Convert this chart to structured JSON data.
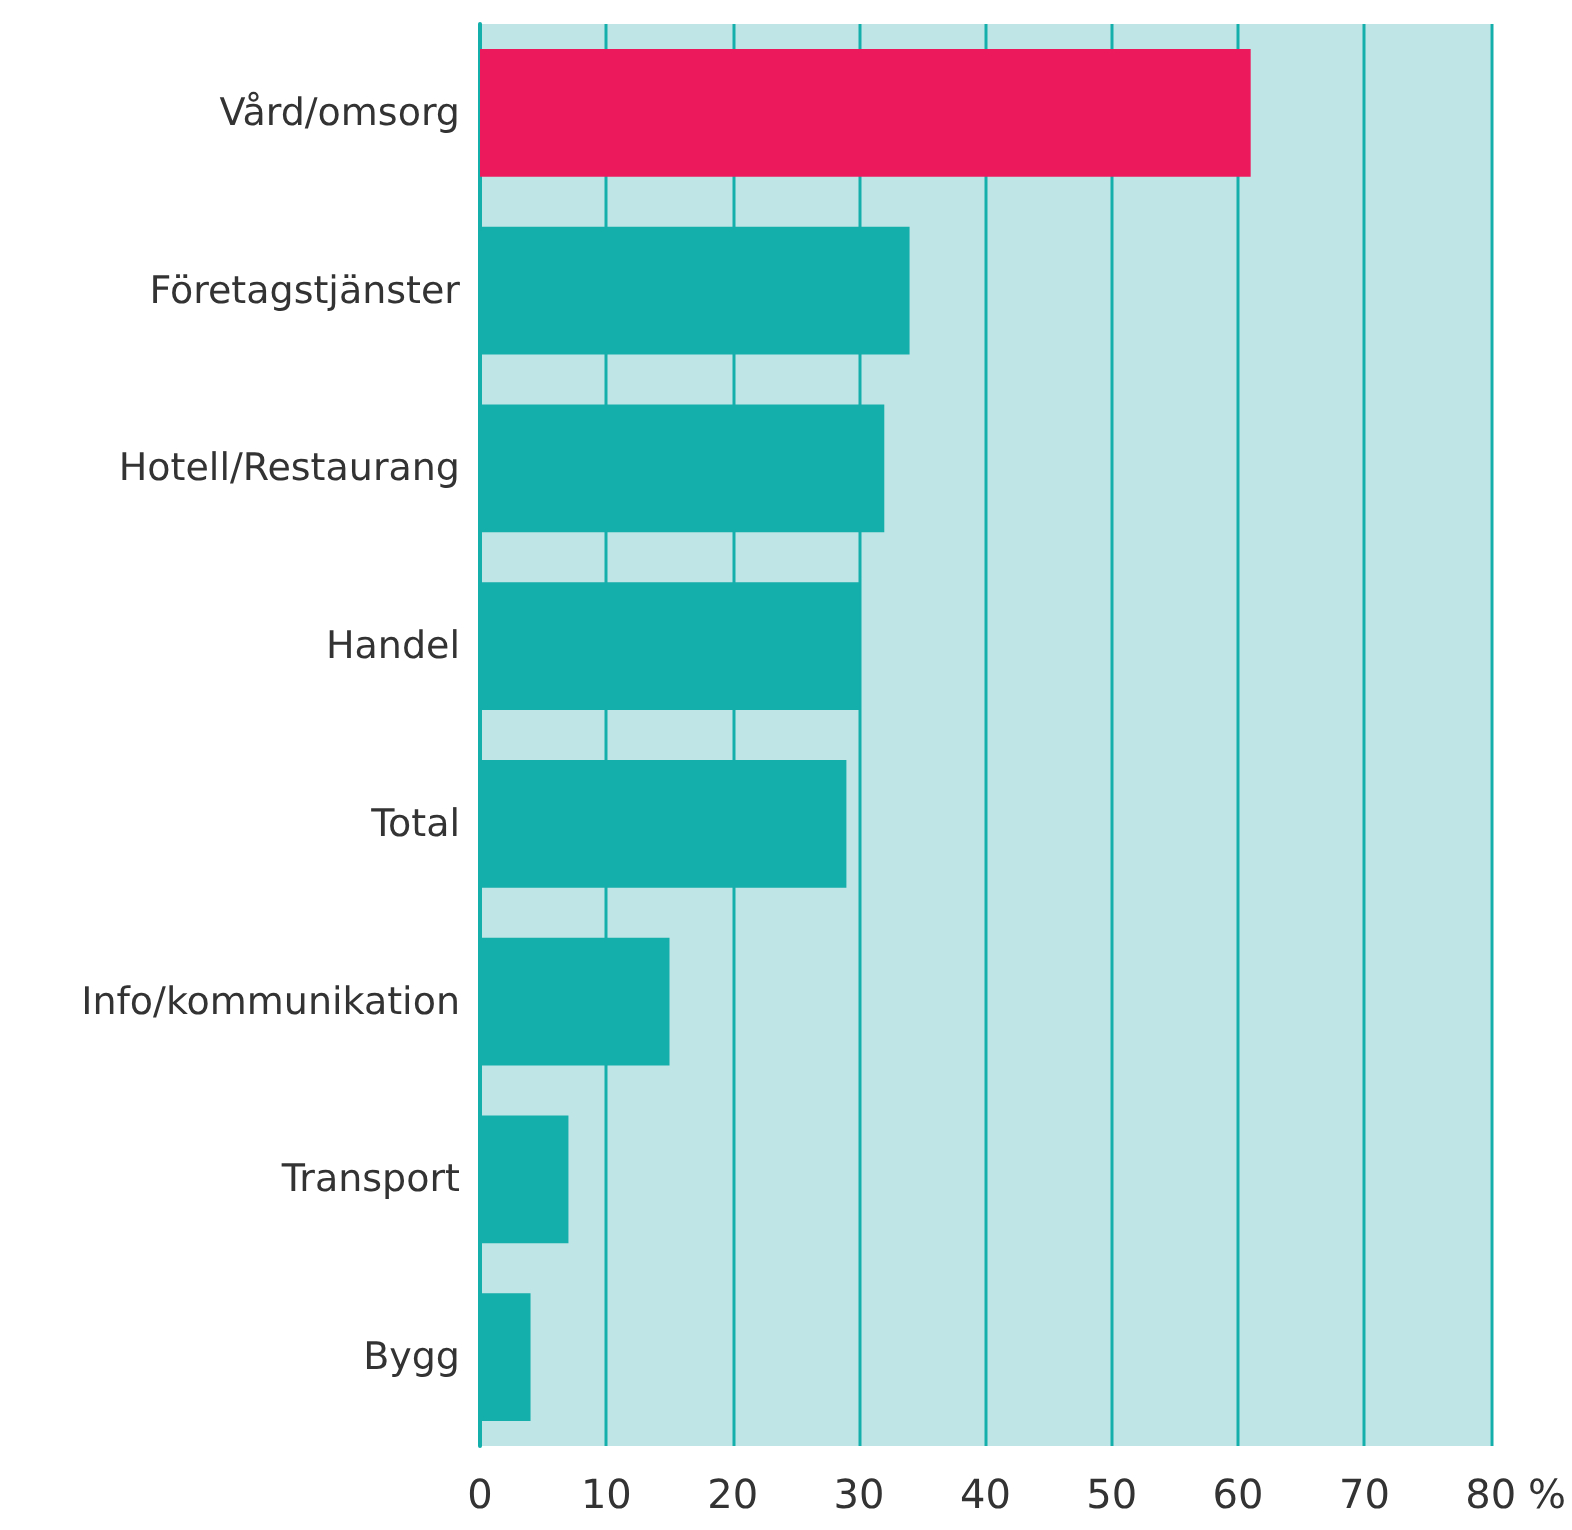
{
  "chart_data": {
    "type": "bar",
    "orientation": "horizontal",
    "xlabel": "%",
    "categories": [
      "Vård/omsorg",
      "Företagstjänster",
      "Hotell/Restaurang",
      "Handel",
      "Total",
      "Info/kommunikation",
      "Transport",
      "Bygg"
    ],
    "values": [
      61,
      34,
      32,
      30,
      29,
      15,
      7,
      4
    ],
    "colors": [
      "#ec1a5d",
      "#14aeab",
      "#14aeab",
      "#14aeab",
      "#14aeab",
      "#14aeab",
      "#14aeab",
      "#14aeab"
    ],
    "xlim": [
      0,
      80
    ],
    "xticks": [
      0,
      10,
      20,
      30,
      40,
      50,
      60,
      70,
      80
    ],
    "grid": "x"
  }
}
